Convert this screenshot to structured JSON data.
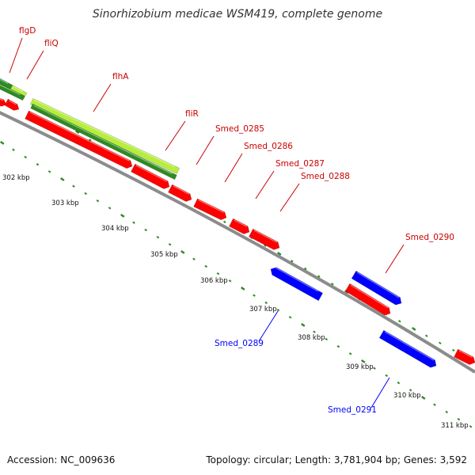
{
  "title": "Sinorhizobium medicae WSM419, complete genome",
  "footer": {
    "accession": "Accession: NC_009636",
    "topology": "Topology: circular; Length: 3,781,904 bp; Genes: 3,592"
  },
  "colors": {
    "forward_gene": "#ff0000",
    "reverse_gene": "#0000ff",
    "highlight_dark": "#2e8b22",
    "highlight_light": "#b7ee3e",
    "backbone": "#8c8c8c",
    "tick": "#2e8b22"
  },
  "scale_ticks": [
    "302 kbp",
    "303 kbp",
    "304 kbp",
    "305 kbp",
    "306 kbp",
    "307 kbp",
    "308 kbp",
    "309 kbp",
    "310 kbp",
    "311 kbp"
  ],
  "gene_labels": [
    {
      "id": "flgD",
      "text": "flgD",
      "strand": "forward"
    },
    {
      "id": "fliQ",
      "text": "fliQ",
      "strand": "forward"
    },
    {
      "id": "flhA",
      "text": "flhA",
      "strand": "forward"
    },
    {
      "id": "fliR",
      "text": "fliR",
      "strand": "forward"
    },
    {
      "id": "Smed_0285",
      "text": "Smed_0285",
      "strand": "forward"
    },
    {
      "id": "Smed_0286",
      "text": "Smed_0286",
      "strand": "forward"
    },
    {
      "id": "Smed_0287",
      "text": "Smed_0287",
      "strand": "forward"
    },
    {
      "id": "Smed_0288",
      "text": "Smed_0288",
      "strand": "forward"
    },
    {
      "id": "Smed_0290",
      "text": "Smed_0290",
      "strand": "forward"
    },
    {
      "id": "Smed_0289",
      "text": "Smed_0289",
      "strand": "reverse"
    },
    {
      "id": "Smed_0291",
      "text": "Smed_0291",
      "strand": "reverse"
    }
  ]
}
